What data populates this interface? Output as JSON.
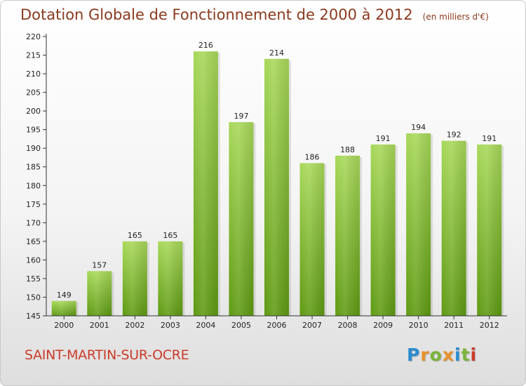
{
  "title": "Dotation Globale de Fonctionnement de 2000 à 2012",
  "subtitle": "(en milliers d'€)",
  "commune": "SAINT-MARTIN-SUR-OCRE",
  "logo": {
    "letters": [
      "P",
      "r",
      "o",
      "x",
      "i",
      "t",
      "i"
    ],
    "colors": [
      "#2a8ccf",
      "#e8912a",
      "#7bb43a",
      "#e8912a",
      "#2a8ccf",
      "#7bb43a",
      "#cc3b2a"
    ]
  },
  "colors": {
    "bar_light": "#a8d85a",
    "bar_dark": "#5e9a12",
    "title": "#8a3a1e",
    "commune": "#cc3b2a"
  },
  "chart_data": {
    "type": "bar",
    "title": "Dotation Globale de Fonctionnement de 2000 à 2012",
    "subtitle": "(en milliers d'€)",
    "categories": [
      "2000",
      "2001",
      "2002",
      "2003",
      "2004",
      "2005",
      "2006",
      "2007",
      "2008",
      "2009",
      "2010",
      "2011",
      "2012"
    ],
    "values": [
      149,
      157,
      165,
      165,
      216,
      197,
      214,
      186,
      188,
      191,
      194,
      192,
      191
    ],
    "ylim": [
      145,
      220
    ],
    "yticks": [
      145,
      150,
      155,
      160,
      165,
      170,
      175,
      180,
      185,
      190,
      195,
      200,
      205,
      210,
      215,
      220
    ],
    "grid": false,
    "legend": "none"
  }
}
